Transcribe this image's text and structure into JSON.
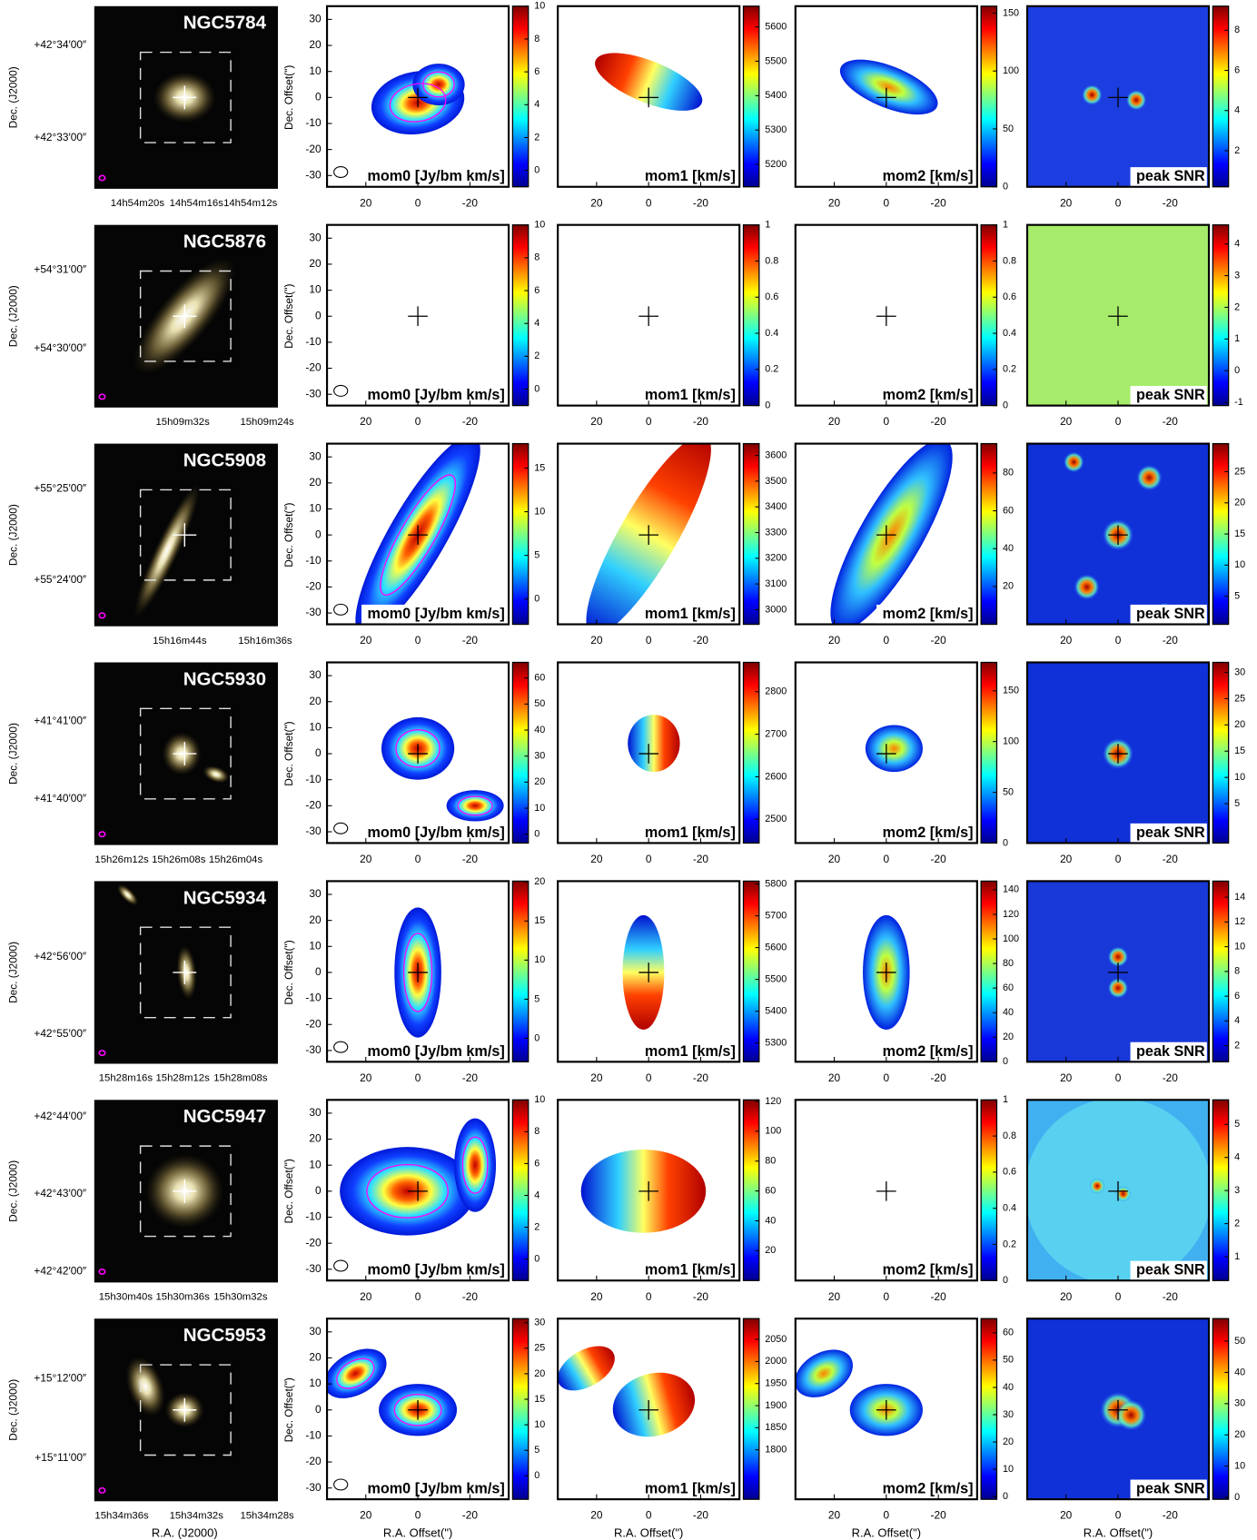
{
  "axes": {
    "dec_offset_label": "Dec. Offset(\")",
    "ra_offset_label": "R.A. Offset(\")",
    "dec_label": "Dec. (J2000)",
    "ra_label": "R.A. (J2000)",
    "offset_yticks": [
      30,
      20,
      10,
      0,
      -10,
      -20,
      -30
    ],
    "offset_xticks": [
      20,
      0,
      -20
    ]
  },
  "panel_labels": [
    "mom0 [Jy/bm km/s]",
    "mom1 [km/s]",
    "mom2 [km/s]",
    "peak SNR"
  ],
  "galaxies": [
    {
      "name": "NGC5784",
      "dec_ticks": [
        "+42°34′00″",
        "+42°33′00″"
      ],
      "ra_ticks": [
        "14h54m20s",
        "14h54m16s",
        "14h54m12s"
      ],
      "colorbars": [
        {
          "lim": [
            -1,
            10
          ],
          "ticks": [
            0,
            2,
            4,
            6,
            8,
            10
          ]
        },
        {
          "lim": [
            5135,
            5660
          ],
          "ticks": [
            5200,
            5300,
            5400,
            5500,
            5600
          ]
        },
        {
          "lim": [
            0,
            156
          ],
          "ticks": [
            0,
            50,
            100,
            150
          ]
        },
        {
          "lim": [
            0.2,
            9.2
          ],
          "ticks": [
            2,
            4,
            6,
            8
          ]
        }
      ]
    },
    {
      "name": "NGC5876",
      "dec_ticks": [
        "+54°31′00″",
        "+54°30′00″"
      ],
      "ra_ticks": [
        "15h09m32s",
        "15h09m24s"
      ],
      "colorbars": [
        {
          "lim": [
            -1,
            10
          ],
          "ticks": [
            0,
            2,
            4,
            6,
            8,
            10
          ]
        },
        {
          "lim": [
            0,
            1
          ],
          "ticks": [
            0,
            0.2,
            0.4,
            0.6,
            0.8,
            1
          ]
        },
        {
          "lim": [
            0,
            1
          ],
          "ticks": [
            0,
            0.2,
            0.4,
            0.6,
            0.8,
            1
          ]
        },
        {
          "lim": [
            -1.1,
            4.6
          ],
          "ticks": [
            -1,
            0,
            1,
            2,
            3,
            4
          ]
        }
      ]
    },
    {
      "name": "NGC5908",
      "dec_ticks": [
        "+55°25′00″",
        "+55°24′00″"
      ],
      "ra_ticks": [
        "15h16m44s",
        "15h16m36s"
      ],
      "colorbars": [
        {
          "lim": [
            -2.9,
            17.8
          ],
          "ticks": [
            0,
            5,
            10,
            15
          ]
        },
        {
          "lim": [
            2943,
            3646
          ],
          "ticks": [
            3000,
            3100,
            3200,
            3300,
            3400,
            3500,
            3600
          ]
        },
        {
          "lim": [
            0,
            95.5
          ],
          "ticks": [
            20,
            40,
            60,
            80
          ]
        },
        {
          "lim": [
            0.5,
            29.5
          ],
          "ticks": [
            5,
            10,
            15,
            20,
            25
          ]
        }
      ]
    },
    {
      "name": "NGC5930",
      "dec_ticks": [
        "+41°41′00″",
        "+41°40′00″"
      ],
      "ra_ticks": [
        "15h26m12s",
        "15h26m08s",
        "15h26m04s"
      ],
      "colorbars": [
        {
          "lim": [
            -3.4,
            66
          ],
          "ticks": [
            0,
            10,
            20,
            30,
            40,
            50,
            60
          ]
        },
        {
          "lim": [
            2444,
            2869
          ],
          "ticks": [
            2500,
            2600,
            2700,
            2800
          ]
        },
        {
          "lim": [
            0,
            178
          ],
          "ticks": [
            0,
            50,
            100,
            150
          ]
        },
        {
          "lim": [
            -2.5,
            31.9
          ],
          "ticks": [
            5,
            10,
            15,
            20,
            25,
            30
          ]
        }
      ]
    },
    {
      "name": "NGC5934",
      "dec_ticks": [
        "+42°56′00″",
        "+42°55′00″"
      ],
      "ra_ticks": [
        "15h28m16s",
        "15h28m12s",
        "15h28m08s"
      ],
      "colorbars": [
        {
          "lim": [
            -3,
            20.1
          ],
          "ticks": [
            0,
            5,
            10,
            15,
            20
          ]
        },
        {
          "lim": [
            5241,
            5809
          ],
          "ticks": [
            5300,
            5400,
            5500,
            5600,
            5700,
            5800
          ]
        },
        {
          "lim": [
            0,
            147
          ],
          "ticks": [
            0,
            20,
            40,
            60,
            80,
            100,
            120,
            140
          ]
        },
        {
          "lim": [
            0.7,
            15.3
          ],
          "ticks": [
            2,
            4,
            6,
            8,
            10,
            12,
            14
          ]
        }
      ]
    },
    {
      "name": "NGC5947",
      "dec_ticks": [
        "+42°44′00″",
        "+42°43′00″",
        "+42°42′00″"
      ],
      "ra_ticks": [
        "15h30m40s",
        "15h30m36s",
        "15h30m32s"
      ],
      "colorbars": [
        {
          "lim": [
            -1.35,
            10
          ],
          "ticks": [
            0,
            2,
            4,
            6,
            8,
            10
          ]
        },
        {
          "lim": [
            0,
            121
          ],
          "ticks": [
            20,
            40,
            60,
            80,
            100,
            120
          ]
        },
        {
          "lim": [
            0,
            1
          ],
          "ticks": [
            0,
            0.2,
            0.4,
            0.6,
            0.8,
            1
          ]
        },
        {
          "lim": [
            0.28,
            5.74
          ],
          "ticks": [
            1,
            2,
            3,
            4,
            5
          ]
        }
      ]
    },
    {
      "name": "NGC5953",
      "dec_ticks": [
        "+15°12′00″",
        "+15°11′00″"
      ],
      "ra_ticks": [
        "15h34m36s",
        "15h34m32s",
        "15h34m28s"
      ],
      "colorbars": [
        {
          "lim": [
            -4.6,
            30.8
          ],
          "ticks": [
            0,
            5,
            10,
            15,
            20,
            25,
            30
          ]
        },
        {
          "lim": [
            1688,
            2097
          ],
          "ticks": [
            1800,
            1850,
            1900,
            1950,
            2000,
            2050
          ]
        },
        {
          "lim": [
            -1,
            65.2
          ],
          "ticks": [
            0,
            10,
            20,
            30,
            40,
            50,
            60
          ]
        },
        {
          "lim": [
            -0.6,
            57.2
          ],
          "ticks": [
            0,
            10,
            20,
            30,
            40,
            50
          ]
        }
      ]
    }
  ]
}
